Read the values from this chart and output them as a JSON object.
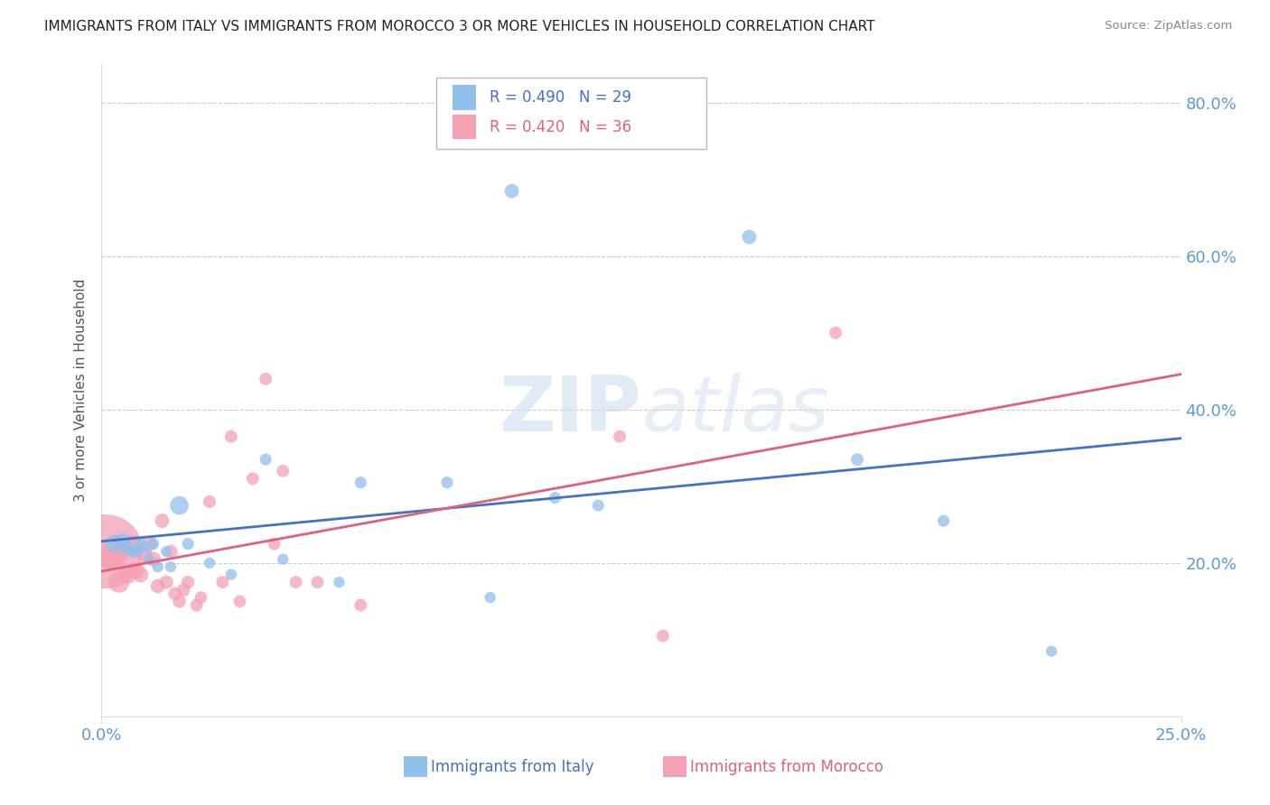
{
  "title": "IMMIGRANTS FROM ITALY VS IMMIGRANTS FROM MOROCCO 3 OR MORE VEHICLES IN HOUSEHOLD CORRELATION CHART",
  "source": "Source: ZipAtlas.com",
  "ylabel_label": "3 or more Vehicles in Household",
  "xlim": [
    0.0,
    0.25
  ],
  "ylim": [
    0.0,
    0.85
  ],
  "legend_italy": "Immigrants from Italy",
  "legend_morocco": "Immigrants from Morocco",
  "italy_R": "R = 0.490",
  "italy_N": "N = 29",
  "morocco_R": "R = 0.420",
  "morocco_N": "N = 36",
  "color_italy": "#90C0EC",
  "color_morocco": "#F4A0B5",
  "color_italy_line": "#4472C4",
  "color_morocco_line": "#E06080",
  "color_axis_labels": "#5B9BD5",
  "background_color": "#FFFFFF",
  "yticks": [
    0.0,
    0.2,
    0.4,
    0.6,
    0.8
  ],
  "xticks": [
    0.0,
    0.25
  ],
  "italy_x": [
    0.003,
    0.005,
    0.006,
    0.007,
    0.008,
    0.009,
    0.01,
    0.011,
    0.012,
    0.013,
    0.015,
    0.016,
    0.018,
    0.02,
    0.025,
    0.03,
    0.038,
    0.042,
    0.055,
    0.06,
    0.08,
    0.09,
    0.095,
    0.105,
    0.115,
    0.15,
    0.175,
    0.195,
    0.22
  ],
  "italy_y": [
    0.225,
    0.23,
    0.22,
    0.215,
    0.215,
    0.225,
    0.22,
    0.205,
    0.225,
    0.195,
    0.215,
    0.195,
    0.275,
    0.225,
    0.2,
    0.185,
    0.335,
    0.205,
    0.175,
    0.305,
    0.305,
    0.155,
    0.685,
    0.285,
    0.275,
    0.625,
    0.335,
    0.255,
    0.085
  ],
  "italy_size": [
    200,
    130,
    100,
    90,
    90,
    90,
    90,
    85,
    85,
    80,
    80,
    80,
    220,
    90,
    80,
    80,
    90,
    80,
    80,
    90,
    90,
    80,
    130,
    90,
    90,
    130,
    100,
    90,
    80
  ],
  "morocco_x": [
    0.001,
    0.002,
    0.003,
    0.004,
    0.005,
    0.006,
    0.007,
    0.008,
    0.009,
    0.01,
    0.011,
    0.012,
    0.013,
    0.014,
    0.015,
    0.016,
    0.017,
    0.018,
    0.019,
    0.02,
    0.022,
    0.023,
    0.025,
    0.028,
    0.03,
    0.032,
    0.035,
    0.038,
    0.04,
    0.042,
    0.045,
    0.05,
    0.06,
    0.12,
    0.13,
    0.17
  ],
  "morocco_y": [
    0.215,
    0.21,
    0.205,
    0.175,
    0.22,
    0.185,
    0.225,
    0.19,
    0.185,
    0.21,
    0.225,
    0.205,
    0.17,
    0.255,
    0.175,
    0.215,
    0.16,
    0.15,
    0.165,
    0.175,
    0.145,
    0.155,
    0.28,
    0.175,
    0.365,
    0.15,
    0.31,
    0.44,
    0.225,
    0.32,
    0.175,
    0.175,
    0.145,
    0.365,
    0.105,
    0.5
  ],
  "morocco_size": [
    3500,
    500,
    350,
    280,
    280,
    220,
    200,
    180,
    160,
    160,
    150,
    140,
    130,
    130,
    120,
    120,
    110,
    110,
    110,
    110,
    100,
    100,
    100,
    100,
    100,
    100,
    100,
    100,
    100,
    100,
    100,
    100,
    100,
    100,
    100,
    100
  ]
}
